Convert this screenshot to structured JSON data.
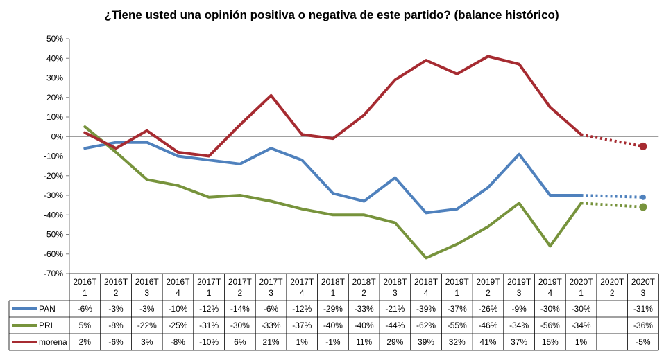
{
  "chart_data": {
    "type": "line",
    "title": "¿Tiene usted una opinión positiva o negativa de este partido? (balance histórico)",
    "xlabel": "",
    "ylabel": "",
    "ylim": [
      -70,
      50
    ],
    "y_ticks": [
      "50%",
      "40%",
      "30%",
      "20%",
      "10%",
      "0%",
      "-10%",
      "-20%",
      "-30%",
      "-40%",
      "-50%",
      "-60%",
      "-70%"
    ],
    "grid": false,
    "legend": "data-table-below",
    "categories": [
      [
        "2016T",
        "1"
      ],
      [
        "2016T",
        "2"
      ],
      [
        "2016T",
        "3"
      ],
      [
        "2016T",
        "4"
      ],
      [
        "2017T",
        "1"
      ],
      [
        "2017T",
        "2"
      ],
      [
        "2017T",
        "3"
      ],
      [
        "2017T",
        "4"
      ],
      [
        "2018T",
        "1"
      ],
      [
        "2018T",
        "2"
      ],
      [
        "2018T",
        "3"
      ],
      [
        "2018T",
        "4"
      ],
      [
        "2019T",
        "1"
      ],
      [
        "2019T",
        "2"
      ],
      [
        "2019T",
        "3"
      ],
      [
        "2019T",
        "4"
      ],
      [
        "2020T",
        "1"
      ],
      [
        "2020T",
        "2"
      ],
      [
        "2020T",
        "3"
      ]
    ],
    "series": [
      {
        "name": "PAN",
        "color": "#4f81bd",
        "values": [
          -6,
          -3,
          -3,
          -10,
          -12,
          -14,
          -6,
          -12,
          -29,
          -33,
          -21,
          -39,
          -37,
          -26,
          -9,
          -30,
          -30,
          null,
          -31
        ],
        "labels": [
          "-6%",
          "-3%",
          "-3%",
          "-10%",
          "-12%",
          "-14%",
          "-6%",
          "-12%",
          "-29%",
          "-33%",
          "-21%",
          "-39%",
          "-37%",
          "-26%",
          "-9%",
          "-30%",
          "-30%",
          "",
          "-31%"
        ]
      },
      {
        "name": "PRI",
        "color": "#77933c",
        "values": [
          5,
          -8,
          -22,
          -25,
          -31,
          -30,
          -33,
          -37,
          -40,
          -40,
          -44,
          -62,
          -55,
          -46,
          -34,
          -56,
          -34,
          null,
          -36
        ],
        "labels": [
          "5%",
          "-8%",
          "-22%",
          "-25%",
          "-31%",
          "-30%",
          "-33%",
          "-37%",
          "-40%",
          "-40%",
          "-44%",
          "-62%",
          "-55%",
          "-46%",
          "-34%",
          "-56%",
          "-34%",
          "",
          "-36%"
        ]
      },
      {
        "name": "morena",
        "color": "#a62b31",
        "values": [
          2,
          -6,
          3,
          -8,
          -10,
          6,
          21,
          1,
          -1,
          11,
          29,
          39,
          32,
          41,
          37,
          15,
          1,
          null,
          -5
        ],
        "labels": [
          "2%",
          "-6%",
          "3%",
          "-8%",
          "-10%",
          "6%",
          "21%",
          "1%",
          "-1%",
          "11%",
          "29%",
          "39%",
          "32%",
          "41%",
          "37%",
          "15%",
          "1%",
          "",
          "-5%"
        ]
      }
    ],
    "projection": {
      "from_index": 16,
      "to_index": 18,
      "style": "dotted-with-end-marker"
    }
  }
}
